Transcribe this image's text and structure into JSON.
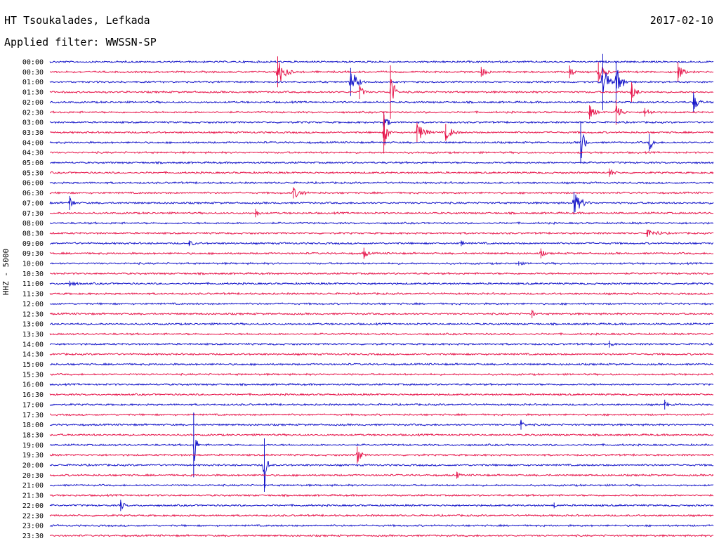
{
  "header": {
    "station": "HT Tsoukalades, Lefkada",
    "date": "2017-02-10",
    "filter": "Applied filter: WWSSN-SP"
  },
  "colors": {
    "trace_a": "#1414c8",
    "trace_b": "#e6144a",
    "background": "#ffffff",
    "text": "#000000"
  },
  "chart_data": {
    "type": "line",
    "subtype": "helicorder",
    "title": "HT Tsoukalades, Lefkada",
    "date": "2017-02-10",
    "filter": "Applied filter: WWSSN-SP",
    "ylabel": "HHZ - 5000",
    "grid": false,
    "rows": [
      "00:00",
      "00:30",
      "01:00",
      "01:30",
      "02:00",
      "02:30",
      "03:00",
      "03:30",
      "04:00",
      "04:30",
      "05:00",
      "05:30",
      "06:00",
      "06:30",
      "07:00",
      "07:30",
      "08:00",
      "08:30",
      "09:00",
      "09:30",
      "10:00",
      "10:30",
      "11:00",
      "11:30",
      "12:00",
      "12:30",
      "13:00",
      "13:30",
      "14:00",
      "14:30",
      "15:00",
      "15:30",
      "16:00",
      "16:30",
      "17:00",
      "17:30",
      "18:00",
      "18:30",
      "19:00",
      "19:30",
      "20:00",
      "20:30",
      "21:00",
      "21:30",
      "22:00",
      "22:30",
      "23:00",
      "23:30"
    ],
    "row_colors": [
      "blue",
      "red",
      "blue",
      "red",
      "blue",
      "red",
      "blue",
      "red",
      "blue",
      "red",
      "blue",
      "red",
      "blue",
      "red",
      "blue",
      "red",
      "blue",
      "red",
      "blue",
      "red",
      "blue",
      "red",
      "blue",
      "red",
      "blue",
      "red",
      "blue",
      "red",
      "blue",
      "red",
      "blue",
      "red",
      "blue",
      "red",
      "blue",
      "red",
      "blue",
      "red",
      "blue",
      "red",
      "blue",
      "red",
      "blue",
      "red",
      "blue",
      "red",
      "blue",
      "red"
    ],
    "row_minutes": 30,
    "events": [
      {
        "row": 1,
        "minute": 10.3,
        "amp": 22,
        "dur": 0.9
      },
      {
        "row": 1,
        "minute": 19.5,
        "amp": 7,
        "dur": 0.9
      },
      {
        "row": 1,
        "minute": 23.5,
        "amp": 9,
        "dur": 0.6
      },
      {
        "row": 1,
        "minute": 24.8,
        "amp": 14,
        "dur": 0.8
      },
      {
        "row": 1,
        "minute": 28.4,
        "amp": 14,
        "dur": 0.6
      },
      {
        "row": 2,
        "minute": 13.6,
        "amp": 20,
        "dur": 0.8
      },
      {
        "row": 2,
        "minute": 25.0,
        "amp": 40,
        "dur": 0.5
      },
      {
        "row": 2,
        "minute": 25.6,
        "amp": 30,
        "dur": 0.7
      },
      {
        "row": 3,
        "minute": 14.0,
        "amp": 10,
        "dur": 0.6
      },
      {
        "row": 3,
        "minute": 15.4,
        "amp": 38,
        "dur": 0.4
      },
      {
        "row": 3,
        "minute": 26.3,
        "amp": 14,
        "dur": 0.6
      },
      {
        "row": 4,
        "minute": 29.1,
        "amp": 14,
        "dur": 0.6
      },
      {
        "row": 5,
        "minute": 24.4,
        "amp": 10,
        "dur": 0.8
      },
      {
        "row": 5,
        "minute": 25.6,
        "amp": 18,
        "dur": 0.6
      },
      {
        "row": 5,
        "minute": 26.9,
        "amp": 6,
        "dur": 1.2
      },
      {
        "row": 6,
        "minute": 15.1,
        "amp": 14,
        "dur": 0.5
      },
      {
        "row": 7,
        "minute": 15.1,
        "amp": 30,
        "dur": 0.4
      },
      {
        "row": 7,
        "minute": 16.6,
        "amp": 14,
        "dur": 1.0
      },
      {
        "row": 7,
        "minute": 17.9,
        "amp": 12,
        "dur": 0.9
      },
      {
        "row": 8,
        "minute": 24.0,
        "amp": 30,
        "dur": 0.4
      },
      {
        "row": 8,
        "minute": 27.1,
        "amp": 12,
        "dur": 0.6
      },
      {
        "row": 11,
        "minute": 25.3,
        "amp": 6,
        "dur": 0.8
      },
      {
        "row": 13,
        "minute": 11.0,
        "amp": 8,
        "dur": 1.3
      },
      {
        "row": 14,
        "minute": 0.9,
        "amp": 10,
        "dur": 0.5
      },
      {
        "row": 14,
        "minute": 23.7,
        "amp": 16,
        "dur": 1.0
      },
      {
        "row": 15,
        "minute": 9.3,
        "amp": 6,
        "dur": 0.6
      },
      {
        "row": 17,
        "minute": 27.0,
        "amp": 5,
        "dur": 2.2
      },
      {
        "row": 18,
        "minute": 6.3,
        "amp": 4,
        "dur": 0.9
      },
      {
        "row": 18,
        "minute": 18.6,
        "amp": 4,
        "dur": 0.5
      },
      {
        "row": 19,
        "minute": 14.2,
        "amp": 8,
        "dur": 0.5
      },
      {
        "row": 19,
        "minute": 22.2,
        "amp": 7,
        "dur": 0.5
      },
      {
        "row": 20,
        "minute": 21.2,
        "amp": 3,
        "dur": 1.0
      },
      {
        "row": 22,
        "minute": 0.9,
        "amp": 4,
        "dur": 1.3
      },
      {
        "row": 25,
        "minute": 21.8,
        "amp": 6,
        "dur": 0.4
      },
      {
        "row": 28,
        "minute": 25.3,
        "amp": 5,
        "dur": 0.6
      },
      {
        "row": 34,
        "minute": 27.8,
        "amp": 7,
        "dur": 0.4
      },
      {
        "row": 36,
        "minute": 21.3,
        "amp": 7,
        "dur": 0.5
      },
      {
        "row": 38,
        "minute": 6.5,
        "amp": 46,
        "dur": 0.25
      },
      {
        "row": 39,
        "minute": 13.9,
        "amp": 12,
        "dur": 0.5
      },
      {
        "row": 40,
        "minute": 9.7,
        "amp": 38,
        "dur": 0.3
      },
      {
        "row": 41,
        "minute": 18.4,
        "amp": 5,
        "dur": 0.5
      },
      {
        "row": 44,
        "minute": 3.2,
        "amp": 8,
        "dur": 0.5
      },
      {
        "row": 44,
        "minute": 22.8,
        "amp": 4,
        "dur": 0.4
      }
    ]
  }
}
